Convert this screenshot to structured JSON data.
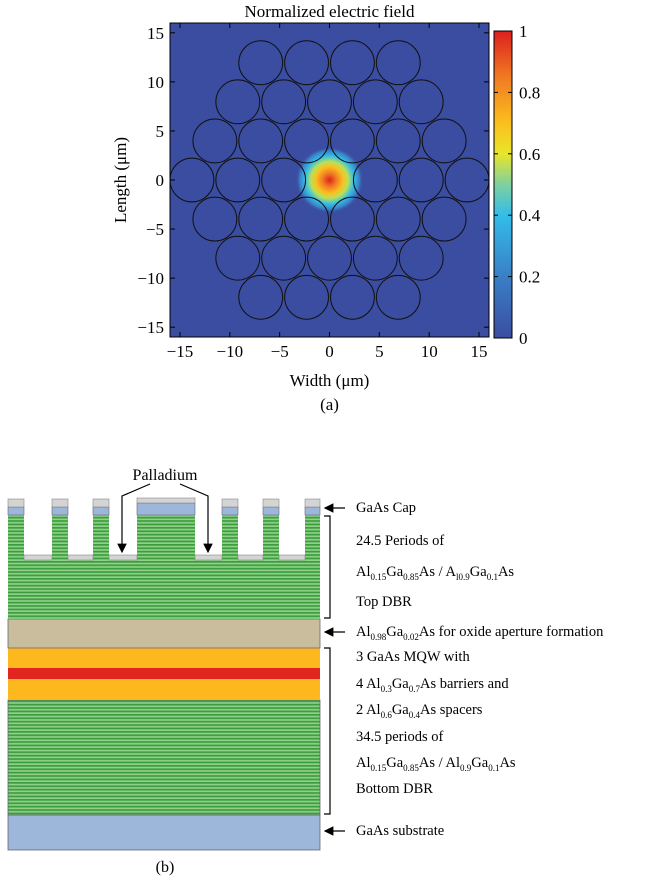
{
  "chart_data": {
    "type": "heatmap",
    "title": "Normalized electric field",
    "x_label": "Width (μm)",
    "y_label": "Length (μm)",
    "xlim": [
      -16,
      16
    ],
    "ylim": [
      -16,
      16
    ],
    "xticks": [
      {
        "value": -15,
        "label": "−15"
      },
      {
        "value": -10,
        "label": "−10"
      },
      {
        "value": -5,
        "label": "−5"
      },
      0,
      5,
      10,
      15
    ],
    "yticks": [
      {
        "value": -15,
        "label": "−15"
      },
      {
        "value": -10,
        "label": "−10"
      },
      {
        "value": -5,
        "label": "−5"
      },
      0,
      5,
      10,
      15
    ],
    "colorbar": {
      "lim": [
        0,
        1
      ],
      "ticks": [
        0,
        0.2,
        0.4,
        0.6,
        0.8,
        1
      ]
    },
    "caption": "(a)"
  },
  "diagram": {
    "caption": "(b)",
    "top_label": "Palladium",
    "labels": [
      {
        "runs": [
          "GaAs Cap"
        ]
      },
      {
        "runs": [
          "24.5 Periods of"
        ]
      },
      {
        "runs": [
          "Al",
          "0.15",
          "Ga",
          "0.85",
          "As / A",
          "l0.9",
          "Ga",
          "0.1",
          "As"
        ]
      },
      {
        "runs": [
          "Top DBR"
        ]
      },
      {
        "runs": [
          "Al",
          "0.98",
          "Ga",
          "0.02",
          "As for oxide aperture formation"
        ]
      },
      {
        "runs": [
          "3 GaAs MQW with"
        ]
      },
      {
        "runs": [
          "4 Al",
          "0.3",
          "Ga",
          "0.7",
          "As barriers and"
        ]
      },
      {
        "runs": [
          "2 Al",
          "0.6",
          "Ga",
          "0.4",
          "As spacers"
        ]
      },
      {
        "runs": [
          "34.5 periods of"
        ]
      },
      {
        "runs": [
          "Al",
          "0.15",
          "Ga",
          "0.85",
          "As / Al",
          "0.9",
          "Ga",
          "0.1",
          "As"
        ]
      },
      {
        "runs": [
          "Bottom DBR"
        ]
      },
      {
        "runs": [
          "GaAs substrate"
        ]
      }
    ]
  }
}
